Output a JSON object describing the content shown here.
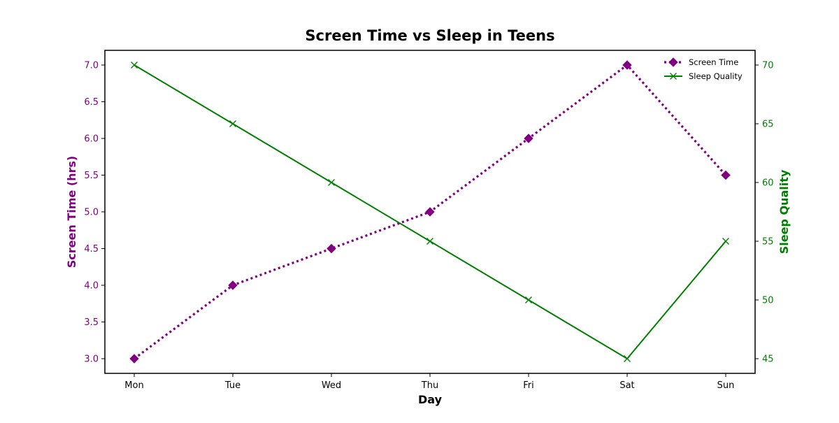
{
  "chart_data": {
    "type": "line",
    "title": "Screen Time vs Sleep in Teens",
    "xlabel": "Day",
    "categories": [
      "Mon",
      "Tue",
      "Wed",
      "Thu",
      "Fri",
      "Sat",
      "Sun"
    ],
    "axes": {
      "left": {
        "label": "Screen Time (hrs)",
        "ylim": [
          2.8,
          7.2
        ],
        "ticks": [
          "3.0",
          "3.5",
          "4.0",
          "4.5",
          "5.0",
          "5.5",
          "6.0",
          "6.5",
          "7.0"
        ],
        "color": "#800080"
      },
      "right": {
        "label": "Sleep Quality",
        "ylim": [
          43.75,
          71.25
        ],
        "ticks": [
          "45",
          "50",
          "55",
          "60",
          "65",
          "70"
        ],
        "color": "#008000"
      }
    },
    "series": [
      {
        "name": "Screen Time",
        "axis": "left",
        "values": [
          3.0,
          4.0,
          4.5,
          5.0,
          6.0,
          7.0,
          5.5
        ],
        "color": "#800080",
        "line_style": "dotted",
        "marker": "diamond"
      },
      {
        "name": "Sleep Quality",
        "axis": "right",
        "values": [
          70,
          65,
          60,
          55,
          50,
          45,
          55
        ],
        "color": "#008000",
        "line_style": "solid",
        "marker": "x"
      }
    ],
    "legend_position": "top-right",
    "grid": false
  }
}
